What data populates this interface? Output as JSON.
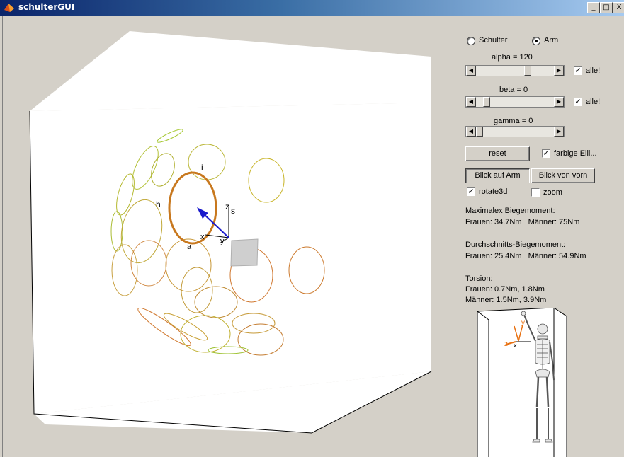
{
  "window": {
    "title": "schulterGUI",
    "buttons": [
      "_",
      "□",
      "X"
    ]
  },
  "mode_radio": {
    "options": [
      "Schulter",
      "Arm"
    ],
    "selected": "Arm"
  },
  "sliders": [
    {
      "label": "alpha = 120",
      "value": 120,
      "checkbox_label": "alle!",
      "checked": true,
      "fraction": 0.65
    },
    {
      "label": "beta = 0",
      "value": 0,
      "checkbox_label": "alle!",
      "checked": true,
      "fraction": 0.18
    },
    {
      "label": "gamma = 0",
      "value": 0,
      "checkbox_label": "",
      "checked": false,
      "fraction": 0.0
    }
  ],
  "reset_label": "reset",
  "farbige_label": "farbige Elli...",
  "farbige_checked": true,
  "view_buttons": {
    "blick_arm": "Blick auf Arm",
    "blick_vorn": "Blick von vorn"
  },
  "rotate3d": {
    "label": "rotate3d",
    "checked": true
  },
  "zoom": {
    "label": "zoom",
    "checked": false
  },
  "max_moment": {
    "title": "Maximalex Biegemoment:",
    "line": "Frauen: 34.7Nm   Männer: 75Nm"
  },
  "avg_moment": {
    "title": "Durchschnitts-Biegemoment:",
    "line": "Frauen: 25.4Nm   Männer: 54.9Nm"
  },
  "torsion": {
    "title": "Torsion:",
    "frauen": "Frauen: 0.7Nm, 1.8Nm",
    "maenner": "Männer: 1.5Nm, 3.9Nm"
  },
  "plot_labels": {
    "i": "i",
    "h": "h",
    "z": "z",
    "s": "s",
    "x": "x",
    "y": "y",
    "a": "a"
  },
  "inset_labels": {
    "z": "z",
    "x": "x",
    "y": "y"
  },
  "colors": {
    "titlebar": "#0a246a",
    "bg": "#d4d0c8",
    "arrow": "#1a1acc",
    "ring_main": "#c8781e"
  }
}
